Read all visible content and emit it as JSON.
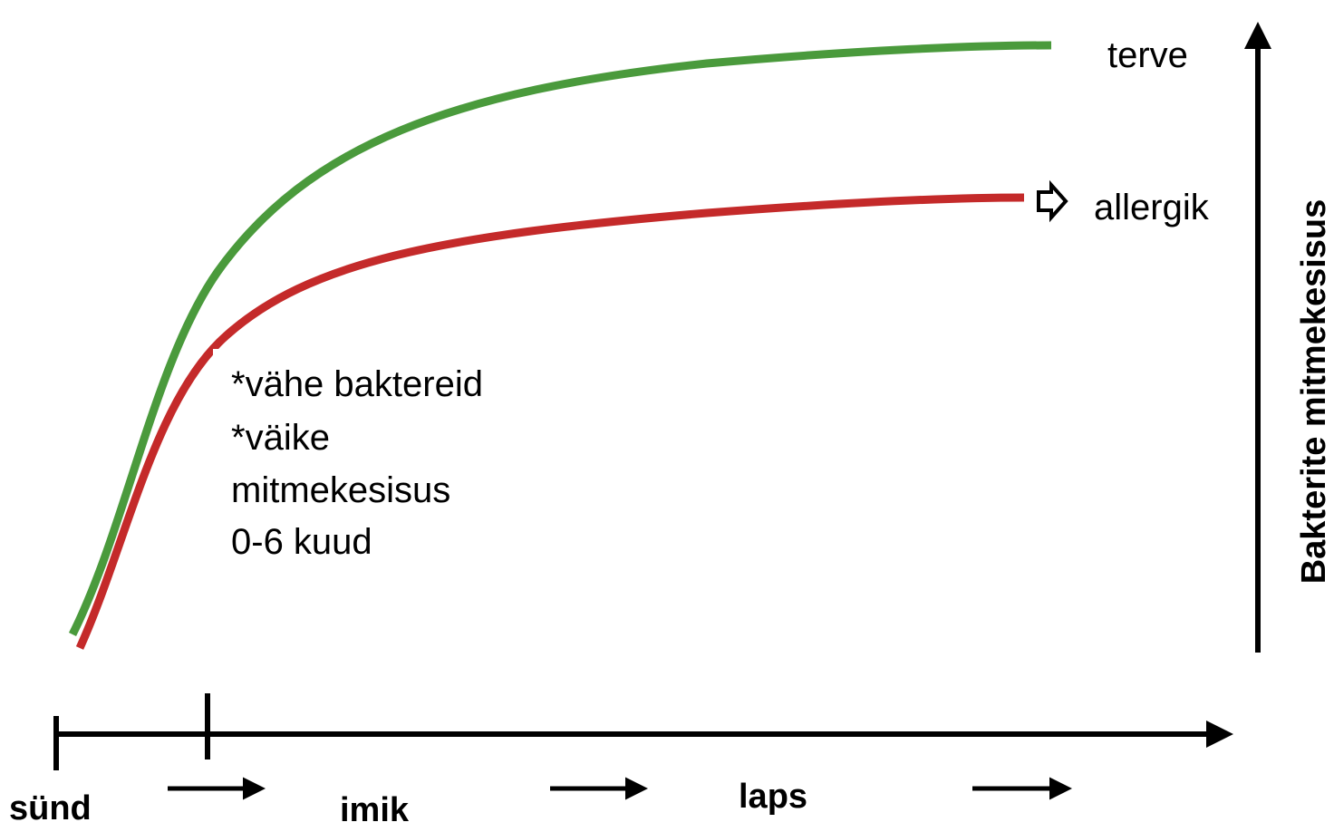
{
  "curves": [
    {
      "label": "terve"
    },
    {
      "label": "allergik"
    }
  ],
  "annotation": {
    "lines": [
      "*vähe baktereid",
      "*väike",
      "mitmekesisus",
      "0-6 kuud"
    ]
  },
  "x_axis": {
    "stages": [
      "sünd",
      "imik",
      "laps"
    ]
  },
  "y_axis": {
    "label": "Bakterite mitmekesisus"
  }
}
